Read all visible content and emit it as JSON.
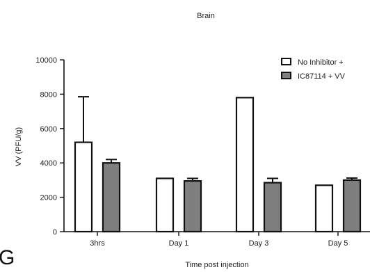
{
  "panel_letter": "G",
  "chart_data": {
    "type": "bar",
    "title": "Brain",
    "xlabel": "Time post injection",
    "ylabel": "VV (PFU/g)",
    "ylim": [
      0,
      10000
    ],
    "yticks": [
      0,
      2000,
      4000,
      6000,
      8000,
      10000
    ],
    "yticks_label": [
      "0",
      "2000",
      "4000",
      "6000",
      "8000",
      "10000"
    ],
    "categories": [
      "3hrs",
      "Day 1",
      "Day 3",
      "Day 5"
    ],
    "legend_position": "top-right",
    "grid": false,
    "series": [
      {
        "name": "No Inhibitor +",
        "color": "#ffffff",
        "values": [
          5200,
          3100,
          7800,
          2700
        ],
        "errors": [
          2650,
          0,
          0,
          0
        ]
      },
      {
        "name": "IC87114 + VV",
        "color": "#7f7f7f",
        "values": [
          4000,
          2950,
          2850,
          3000
        ],
        "errors": [
          200,
          150,
          250,
          120
        ]
      }
    ]
  }
}
